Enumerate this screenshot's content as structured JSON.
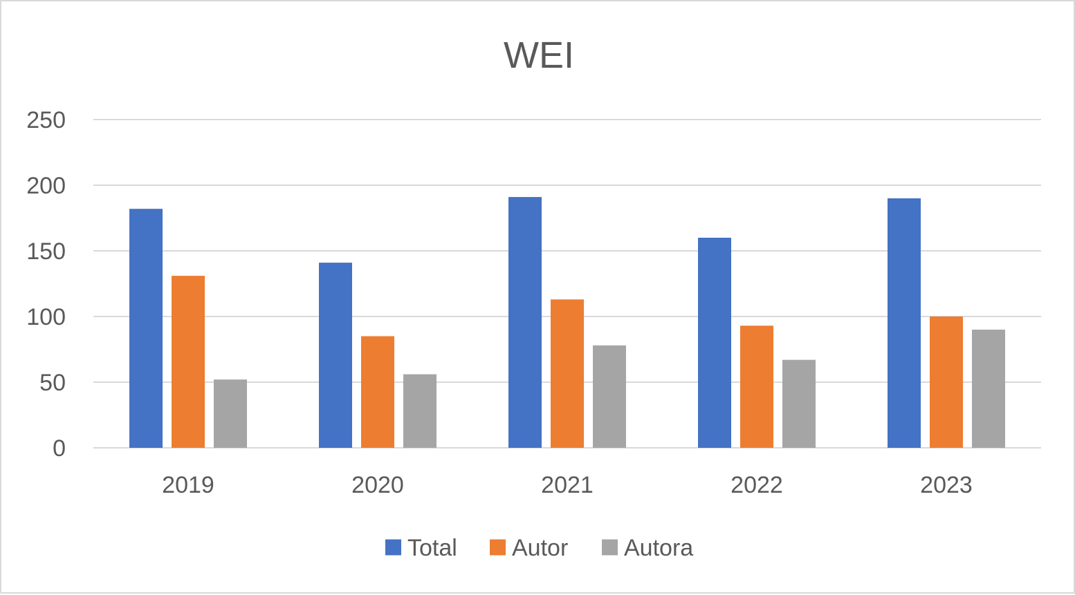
{
  "chart_data": {
    "type": "bar",
    "title": "WEI",
    "xlabel": "",
    "ylabel": "",
    "categories": [
      "2019",
      "2020",
      "2021",
      "2022",
      "2023"
    ],
    "series": [
      {
        "name": "Total",
        "color": "#4472C4",
        "values": [
          182,
          141,
          191,
          160,
          190
        ]
      },
      {
        "name": "Autor",
        "color": "#ED7D31",
        "values": [
          131,
          85,
          113,
          93,
          100
        ]
      },
      {
        "name": "Autora",
        "color": "#A5A5A5",
        "values": [
          52,
          56,
          78,
          67,
          90
        ]
      }
    ],
    "ylim": [
      0,
      250
    ],
    "yticks": [
      0,
      50,
      100,
      150,
      200,
      250
    ],
    "grid": true,
    "legend": "bottom-center"
  }
}
